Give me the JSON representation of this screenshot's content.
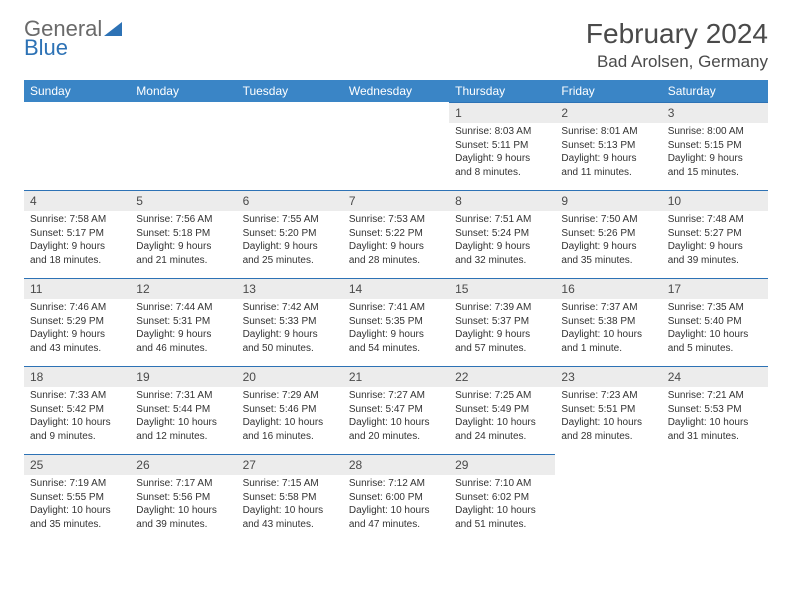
{
  "logo": {
    "text1": "General",
    "text2": "Blue"
  },
  "title": "February 2024",
  "location": "Bad Arolsen, Germany",
  "colors": {
    "header_bg": "#3a85c6",
    "header_text": "#ffffff",
    "daynum_bg": "#ececec",
    "border": "#2d72b5",
    "title_color": "#4a4a4a",
    "body_text": "#333333"
  },
  "weekdays": [
    "Sunday",
    "Monday",
    "Tuesday",
    "Wednesday",
    "Thursday",
    "Friday",
    "Saturday"
  ],
  "weeks": [
    [
      {
        "n": "",
        "sr": "",
        "ss": "",
        "dl": ""
      },
      {
        "n": "",
        "sr": "",
        "ss": "",
        "dl": ""
      },
      {
        "n": "",
        "sr": "",
        "ss": "",
        "dl": ""
      },
      {
        "n": "",
        "sr": "",
        "ss": "",
        "dl": ""
      },
      {
        "n": "1",
        "sr": "Sunrise: 8:03 AM",
        "ss": "Sunset: 5:11 PM",
        "dl": "Daylight: 9 hours and 8 minutes."
      },
      {
        "n": "2",
        "sr": "Sunrise: 8:01 AM",
        "ss": "Sunset: 5:13 PM",
        "dl": "Daylight: 9 hours and 11 minutes."
      },
      {
        "n": "3",
        "sr": "Sunrise: 8:00 AM",
        "ss": "Sunset: 5:15 PM",
        "dl": "Daylight: 9 hours and 15 minutes."
      }
    ],
    [
      {
        "n": "4",
        "sr": "Sunrise: 7:58 AM",
        "ss": "Sunset: 5:17 PM",
        "dl": "Daylight: 9 hours and 18 minutes."
      },
      {
        "n": "5",
        "sr": "Sunrise: 7:56 AM",
        "ss": "Sunset: 5:18 PM",
        "dl": "Daylight: 9 hours and 21 minutes."
      },
      {
        "n": "6",
        "sr": "Sunrise: 7:55 AM",
        "ss": "Sunset: 5:20 PM",
        "dl": "Daylight: 9 hours and 25 minutes."
      },
      {
        "n": "7",
        "sr": "Sunrise: 7:53 AM",
        "ss": "Sunset: 5:22 PM",
        "dl": "Daylight: 9 hours and 28 minutes."
      },
      {
        "n": "8",
        "sr": "Sunrise: 7:51 AM",
        "ss": "Sunset: 5:24 PM",
        "dl": "Daylight: 9 hours and 32 minutes."
      },
      {
        "n": "9",
        "sr": "Sunrise: 7:50 AM",
        "ss": "Sunset: 5:26 PM",
        "dl": "Daylight: 9 hours and 35 minutes."
      },
      {
        "n": "10",
        "sr": "Sunrise: 7:48 AM",
        "ss": "Sunset: 5:27 PM",
        "dl": "Daylight: 9 hours and 39 minutes."
      }
    ],
    [
      {
        "n": "11",
        "sr": "Sunrise: 7:46 AM",
        "ss": "Sunset: 5:29 PM",
        "dl": "Daylight: 9 hours and 43 minutes."
      },
      {
        "n": "12",
        "sr": "Sunrise: 7:44 AM",
        "ss": "Sunset: 5:31 PM",
        "dl": "Daylight: 9 hours and 46 minutes."
      },
      {
        "n": "13",
        "sr": "Sunrise: 7:42 AM",
        "ss": "Sunset: 5:33 PM",
        "dl": "Daylight: 9 hours and 50 minutes."
      },
      {
        "n": "14",
        "sr": "Sunrise: 7:41 AM",
        "ss": "Sunset: 5:35 PM",
        "dl": "Daylight: 9 hours and 54 minutes."
      },
      {
        "n": "15",
        "sr": "Sunrise: 7:39 AM",
        "ss": "Sunset: 5:37 PM",
        "dl": "Daylight: 9 hours and 57 minutes."
      },
      {
        "n": "16",
        "sr": "Sunrise: 7:37 AM",
        "ss": "Sunset: 5:38 PM",
        "dl": "Daylight: 10 hours and 1 minute."
      },
      {
        "n": "17",
        "sr": "Sunrise: 7:35 AM",
        "ss": "Sunset: 5:40 PM",
        "dl": "Daylight: 10 hours and 5 minutes."
      }
    ],
    [
      {
        "n": "18",
        "sr": "Sunrise: 7:33 AM",
        "ss": "Sunset: 5:42 PM",
        "dl": "Daylight: 10 hours and 9 minutes."
      },
      {
        "n": "19",
        "sr": "Sunrise: 7:31 AM",
        "ss": "Sunset: 5:44 PM",
        "dl": "Daylight: 10 hours and 12 minutes."
      },
      {
        "n": "20",
        "sr": "Sunrise: 7:29 AM",
        "ss": "Sunset: 5:46 PM",
        "dl": "Daylight: 10 hours and 16 minutes."
      },
      {
        "n": "21",
        "sr": "Sunrise: 7:27 AM",
        "ss": "Sunset: 5:47 PM",
        "dl": "Daylight: 10 hours and 20 minutes."
      },
      {
        "n": "22",
        "sr": "Sunrise: 7:25 AM",
        "ss": "Sunset: 5:49 PM",
        "dl": "Daylight: 10 hours and 24 minutes."
      },
      {
        "n": "23",
        "sr": "Sunrise: 7:23 AM",
        "ss": "Sunset: 5:51 PM",
        "dl": "Daylight: 10 hours and 28 minutes."
      },
      {
        "n": "24",
        "sr": "Sunrise: 7:21 AM",
        "ss": "Sunset: 5:53 PM",
        "dl": "Daylight: 10 hours and 31 minutes."
      }
    ],
    [
      {
        "n": "25",
        "sr": "Sunrise: 7:19 AM",
        "ss": "Sunset: 5:55 PM",
        "dl": "Daylight: 10 hours and 35 minutes."
      },
      {
        "n": "26",
        "sr": "Sunrise: 7:17 AM",
        "ss": "Sunset: 5:56 PM",
        "dl": "Daylight: 10 hours and 39 minutes."
      },
      {
        "n": "27",
        "sr": "Sunrise: 7:15 AM",
        "ss": "Sunset: 5:58 PM",
        "dl": "Daylight: 10 hours and 43 minutes."
      },
      {
        "n": "28",
        "sr": "Sunrise: 7:12 AM",
        "ss": "Sunset: 6:00 PM",
        "dl": "Daylight: 10 hours and 47 minutes."
      },
      {
        "n": "29",
        "sr": "Sunrise: 7:10 AM",
        "ss": "Sunset: 6:02 PM",
        "dl": "Daylight: 10 hours and 51 minutes."
      },
      {
        "n": "",
        "sr": "",
        "ss": "",
        "dl": ""
      },
      {
        "n": "",
        "sr": "",
        "ss": "",
        "dl": ""
      }
    ]
  ]
}
